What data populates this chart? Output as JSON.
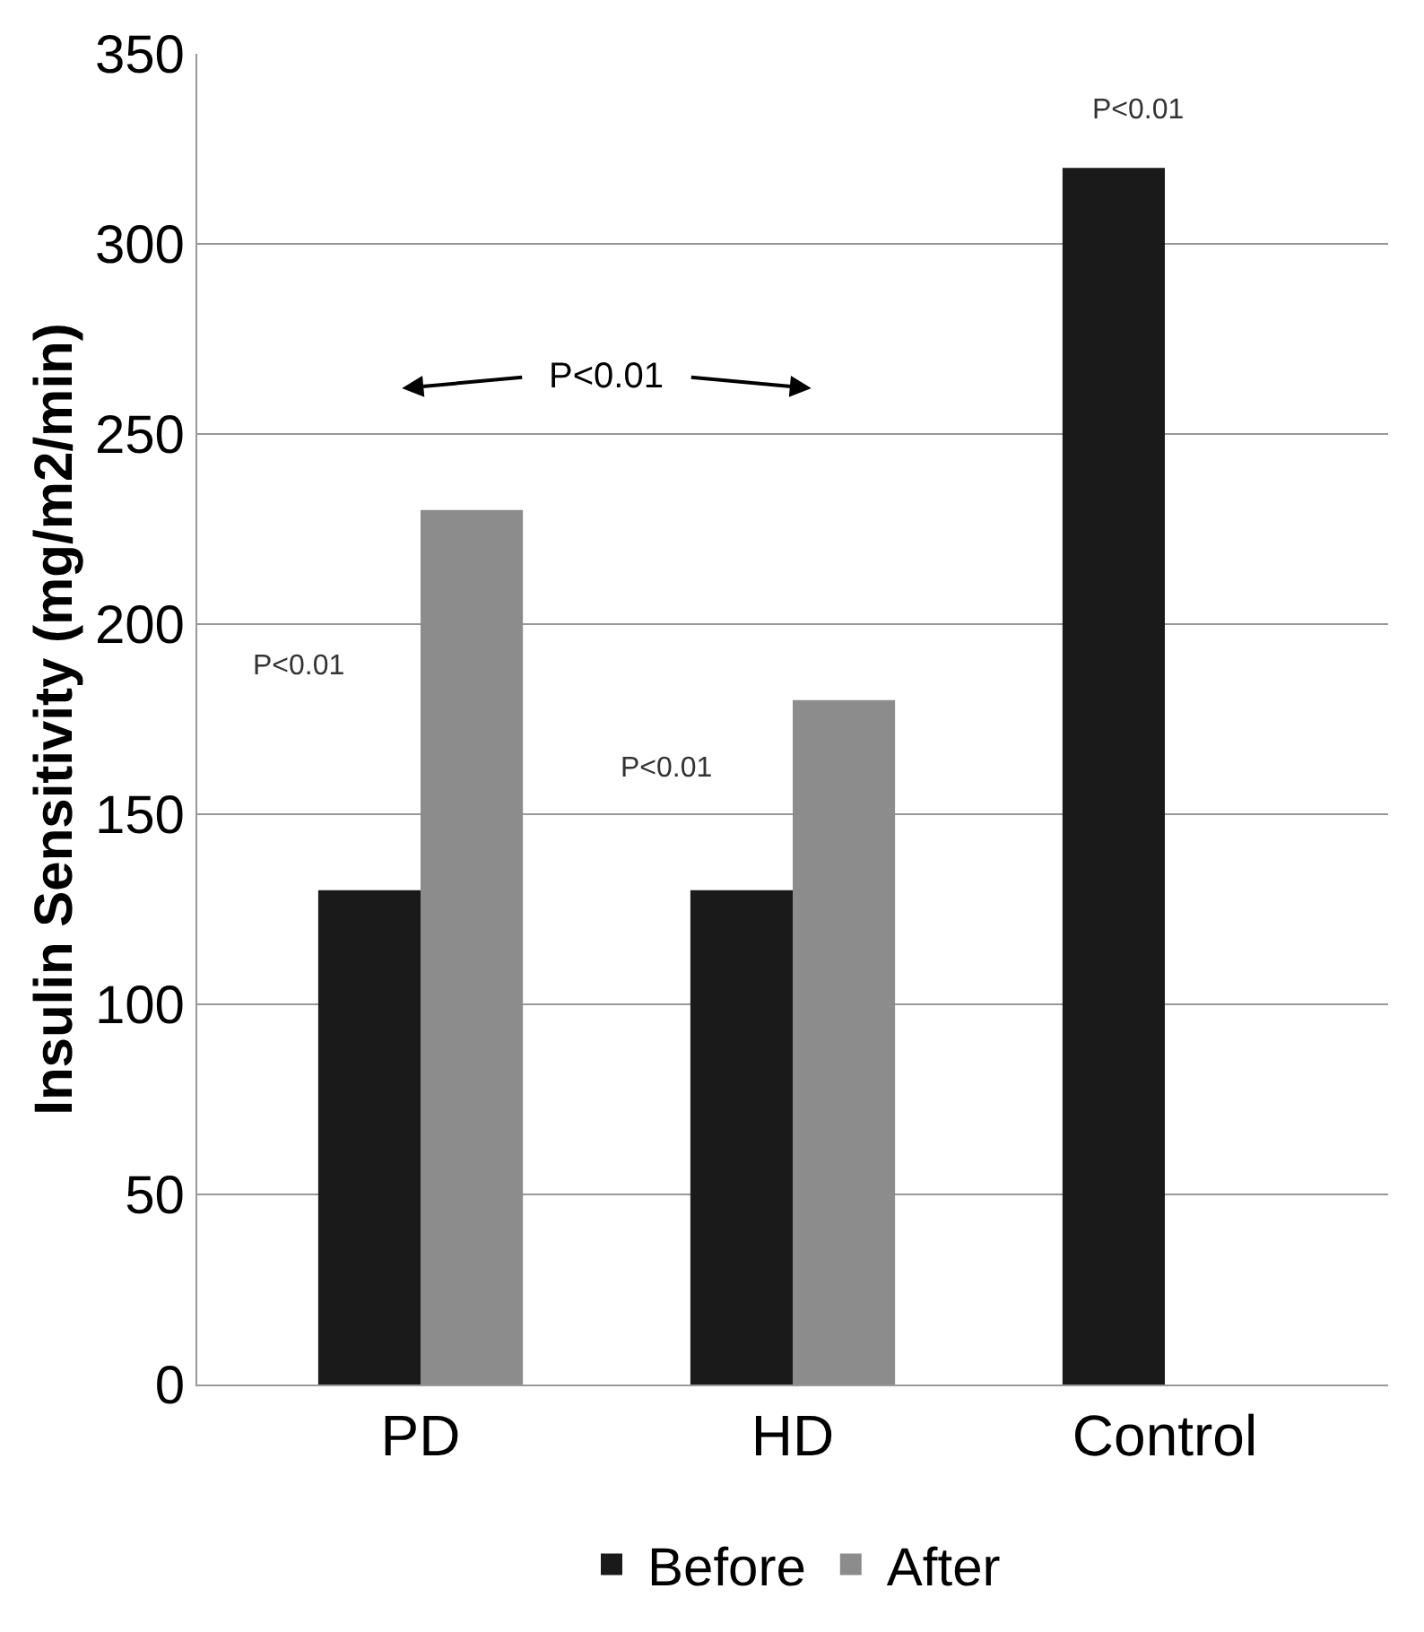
{
  "chart_data": {
    "type": "bar",
    "ylabel": "Insulin Sensitivity (mg/m2/min)",
    "categories": [
      "PD",
      "HD",
      "Control"
    ],
    "series": [
      {
        "name": "Before",
        "color": "#1a1a1a",
        "values": [
          130,
          130,
          320
        ]
      },
      {
        "name": "After",
        "color": "#8c8c8c",
        "values": [
          230,
          180,
          null
        ]
      }
    ],
    "ylim": [
      0,
      350
    ],
    "yticks": [
      0,
      50,
      100,
      150,
      200,
      250,
      300,
      350
    ],
    "grid": "y",
    "legend": "bottom",
    "annotations": [
      "P<0.01",
      "P<0.01",
      "P<0.01",
      "P<0.01"
    ]
  }
}
